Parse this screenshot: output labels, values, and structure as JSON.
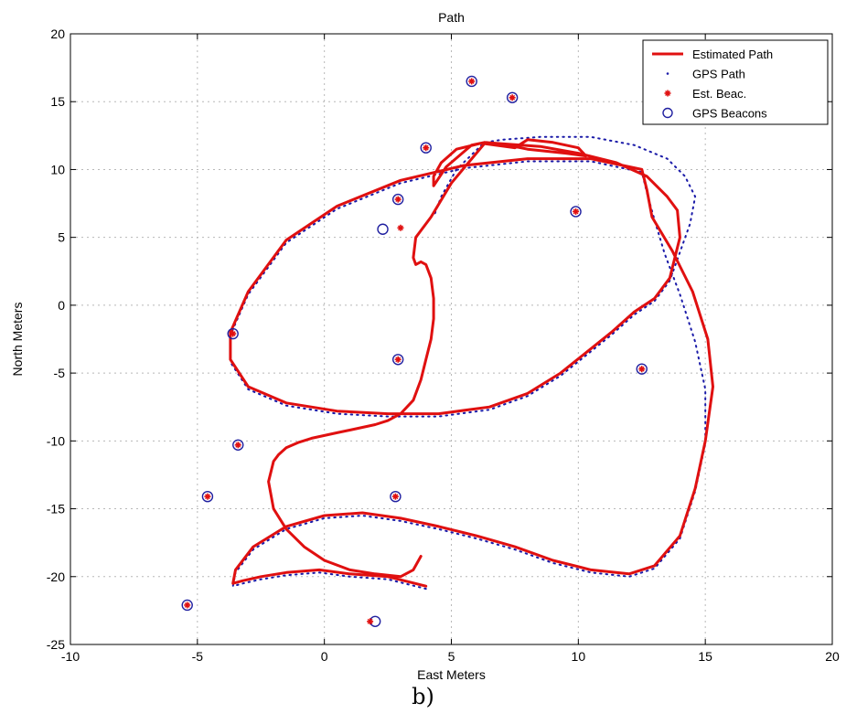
{
  "caption": "b)",
  "chart_data": {
    "type": "line",
    "title": "Path",
    "xlabel": "East Meters",
    "ylabel": "North Meters",
    "xlim": [
      -10,
      20
    ],
    "ylim": [
      -25,
      20
    ],
    "xticks": [
      -10,
      -5,
      0,
      5,
      10,
      15,
      20
    ],
    "yticks": [
      -25,
      -20,
      -15,
      -10,
      -5,
      0,
      5,
      10,
      15,
      20
    ],
    "grid": true,
    "legend_position": "top-right",
    "legend": [
      "Estimated Path",
      "GPS Path",
      "Est. Beac.",
      "GPS Beacons"
    ],
    "colors": {
      "estimated_path": "#e01010",
      "gps_path": "#1a1aa8",
      "est_beacon": "#e01010",
      "gps_beacon": "#2020a0",
      "grid": "#b8b8b8"
    },
    "series": [
      {
        "name": "Estimated Path",
        "style": "line",
        "x": [
          4.0,
          2.5,
          1.0,
          -0.2,
          -1.5,
          -2.5,
          -3.2,
          -3.6,
          -3.5,
          -2.8,
          -1.5,
          0.0,
          1.5,
          3.0,
          4.5,
          6.0,
          7.5,
          9.0,
          10.5,
          12.0,
          13.0,
          14.0,
          14.6,
          15.0,
          15.3,
          15.1,
          14.5,
          13.7,
          12.9,
          12.7,
          12.5,
          10.5,
          8.0,
          5.5,
          3.0,
          0.5,
          -1.5,
          -3.0,
          -3.7,
          -3.7,
          -3.0,
          -1.5,
          0.5,
          2.5,
          4.5,
          6.5,
          8.0,
          9.3,
          10.3,
          11.3,
          12.2,
          13.0,
          13.6,
          14.0,
          13.9,
          13.5,
          12.7,
          11.5,
          10.0,
          8.5,
          7.0,
          6.3,
          5.2,
          4.6,
          4.3,
          4.3,
          4.8,
          5.8,
          6.3,
          7.2,
          8.0,
          9.5,
          10.3,
          10.0,
          9.0,
          8.0,
          7.5,
          6.3,
          5.0,
          4.2,
          3.6,
          3.5,
          3.6,
          3.8,
          4.0,
          4.2,
          4.3,
          4.3,
          4.2,
          4.0,
          3.8,
          3.5,
          3.0,
          2.5,
          2.0,
          1.5,
          1.0,
          0.5,
          0.0,
          -0.5,
          -1.0,
          -1.5,
          -1.8,
          -2.0,
          -2.2,
          -2.0,
          -1.5,
          -0.8,
          0.0,
          1.0,
          2.0,
          3.0,
          3.5,
          3.8
        ],
        "y": [
          -20.7,
          -20.0,
          -19.8,
          -19.5,
          -19.7,
          -20.0,
          -20.3,
          -20.5,
          -19.5,
          -17.8,
          -16.3,
          -15.5,
          -15.3,
          -15.7,
          -16.3,
          -17.0,
          -17.8,
          -18.8,
          -19.5,
          -19.8,
          -19.2,
          -17.0,
          -13.5,
          -10.0,
          -6.0,
          -2.5,
          1.0,
          4.0,
          6.5,
          8.5,
          10.0,
          10.8,
          10.8,
          10.3,
          9.2,
          7.3,
          4.8,
          1.0,
          -2.0,
          -4.0,
          -6.0,
          -7.2,
          -7.8,
          -8.0,
          -8.0,
          -7.5,
          -6.5,
          -5.0,
          -3.5,
          -2.0,
          -0.5,
          0.5,
          2.0,
          5.0,
          7.0,
          8.0,
          9.5,
          10.5,
          11.2,
          11.7,
          11.9,
          12.0,
          11.5,
          10.5,
          9.5,
          8.8,
          10.2,
          11.8,
          12.0,
          11.8,
          11.5,
          11.2,
          11.0,
          11.6,
          12.0,
          12.2,
          11.6,
          11.9,
          9.0,
          6.5,
          5.0,
          3.5,
          3.0,
          3.2,
          3.0,
          2.0,
          0.5,
          -1.0,
          -2.5,
          -4.0,
          -5.5,
          -7.0,
          -8.0,
          -8.5,
          -8.8,
          -9.0,
          -9.2,
          -9.4,
          -9.6,
          -9.8,
          -10.1,
          -10.5,
          -11.0,
          -11.5,
          -13.0,
          -15.0,
          -16.5,
          -17.8,
          -18.8,
          -19.5,
          -19.8,
          -20.0,
          -19.5,
          -18.5
        ]
      },
      {
        "name": "GPS Path",
        "style": "dotted",
        "x": [
          4.0,
          2.5,
          1.0,
          -0.2,
          -1.5,
          -2.5,
          -3.2,
          -3.6,
          -3.5,
          -2.8,
          -1.5,
          0.0,
          1.5,
          3.0,
          4.5,
          6.0,
          7.5,
          9.0,
          10.5,
          12.0,
          13.0,
          14.0,
          14.6,
          15.0,
          15.0,
          14.6,
          14.0,
          13.4,
          13.0,
          12.7,
          12.5,
          10.5,
          8.0,
          5.5,
          3.0,
          0.5,
          -1.5,
          -3.0,
          -3.7,
          -3.7,
          -3.0,
          -1.5,
          0.5,
          2.5,
          4.5,
          6.5,
          8.0,
          9.3,
          10.3,
          11.3,
          12.2,
          13.0,
          13.6,
          14.4,
          14.6,
          14.2,
          13.5,
          12.2,
          10.5,
          8.5,
          7.0,
          6.3,
          5.2,
          4.6,
          4.3
        ],
        "y": [
          -20.9,
          -20.2,
          -20.0,
          -19.7,
          -19.9,
          -20.2,
          -20.5,
          -20.7,
          -19.7,
          -18.0,
          -16.5,
          -15.7,
          -15.5,
          -15.9,
          -16.5,
          -17.2,
          -18.0,
          -19.0,
          -19.7,
          -20.0,
          -19.4,
          -17.2,
          -13.7,
          -10.2,
          -6.2,
          -2.7,
          0.8,
          3.8,
          6.3,
          8.3,
          9.8,
          10.6,
          10.6,
          10.1,
          9.0,
          7.1,
          4.6,
          0.8,
          -2.2,
          -4.2,
          -6.2,
          -7.4,
          -8.0,
          -8.2,
          -8.2,
          -7.7,
          -6.7,
          -5.2,
          -3.7,
          -2.2,
          -0.7,
          0.3,
          1.8,
          6.0,
          8.0,
          9.5,
          10.8,
          11.8,
          12.4,
          12.4,
          12.2,
          12.0,
          10.0,
          8.0,
          6.5
        ]
      },
      {
        "name": "Est. Beac.",
        "style": "marker-star",
        "x": [
          5.8,
          7.4,
          4.0,
          9.9,
          2.9,
          3.0,
          -3.6,
          12.5,
          2.9,
          -3.4,
          -4.6,
          2.8,
          -5.4,
          1.8
        ],
        "y": [
          16.5,
          15.3,
          11.6,
          6.9,
          7.8,
          5.7,
          -2.1,
          -4.7,
          -4.0,
          -10.3,
          -14.1,
          -14.1,
          -22.1,
          -23.3
        ]
      },
      {
        "name": "GPS Beacons",
        "style": "marker-circle",
        "x": [
          5.8,
          7.4,
          4.0,
          9.9,
          2.9,
          2.3,
          -3.6,
          12.5,
          2.9,
          -3.4,
          -4.6,
          2.8,
          -5.4,
          2.0
        ],
        "y": [
          16.5,
          15.3,
          11.6,
          6.9,
          7.8,
          5.6,
          -2.1,
          -4.7,
          -4.0,
          -10.3,
          -14.1,
          -14.1,
          -22.1,
          -23.3
        ]
      }
    ]
  }
}
